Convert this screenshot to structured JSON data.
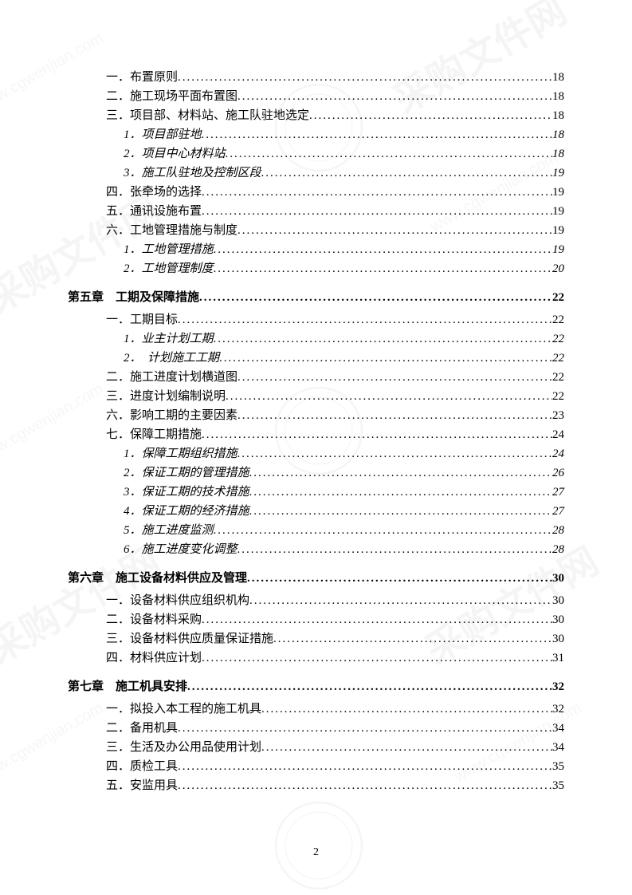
{
  "watermark_text": "采购文件网",
  "watermark_url": "www.cgwenjian.com",
  "page_number": "2",
  "toc": [
    {
      "level": "level1",
      "label": "一．布置原则",
      "page": "18"
    },
    {
      "level": "level1",
      "label": "二．施工现场平面布置图",
      "page": "18"
    },
    {
      "level": "level1",
      "label": "三．项目部、材料站、施工队驻地选定",
      "page": "18"
    },
    {
      "level": "level2",
      "label": "1．项目部驻地",
      "page": "18"
    },
    {
      "level": "level2",
      "label": "2．项目中心材料站",
      "page": "18"
    },
    {
      "level": "level2",
      "label": "3．施工队驻地及控制区段",
      "page": "19"
    },
    {
      "level": "level1",
      "label": "四．张牵场的选择",
      "page": "19"
    },
    {
      "level": "level1",
      "label": "五．通讯设施布置",
      "page": "19"
    },
    {
      "level": "level1",
      "label": "六．工地管理措施与制度",
      "page": "19"
    },
    {
      "level": "level2",
      "label": "1．工地管理措施",
      "page": "19"
    },
    {
      "level": "level2",
      "label": "2．工地管理制度",
      "page": "20"
    },
    {
      "level": "chapter",
      "label": "第五章　工期及保障措施",
      "page": "22",
      "bold": true
    },
    {
      "level": "level1",
      "label": "一．工期目标",
      "page": "22"
    },
    {
      "level": "level2",
      "label": "1．业主计划工期",
      "page": "22"
    },
    {
      "level": "level2",
      "label": "2．　计划施工工期",
      "page": "22"
    },
    {
      "level": "level1",
      "label": "二．施工进度计划横道图",
      "page": "22"
    },
    {
      "level": "level1",
      "label": "三．进度计划编制说明",
      "page": "22"
    },
    {
      "level": "level1",
      "label": "六．影响工期的主要因素",
      "page": "23"
    },
    {
      "level": "level1",
      "label": "七．保障工期措施",
      "page": "24"
    },
    {
      "level": "level2",
      "label": "1．保障工期组织措施",
      "page": "24"
    },
    {
      "level": "level2",
      "label": "2．保证工期的管理措施",
      "page": "26"
    },
    {
      "level": "level2",
      "label": "3．保证工期的技术措施",
      "page": "27"
    },
    {
      "level": "level2",
      "label": "4．保证工期的经济措施",
      "page": "27"
    },
    {
      "level": "level2",
      "label": "5．施工进度监测",
      "page": "28"
    },
    {
      "level": "level2",
      "label": "6．施工进度变化调整",
      "page": "28"
    },
    {
      "level": "chapter",
      "label": "第六章　施工设备材料供应及管理",
      "page": "30",
      "bold": true
    },
    {
      "level": "level1",
      "label": "一．设备材料供应组织机构",
      "page": "30"
    },
    {
      "level": "level1",
      "label": "二．设备材料采购",
      "page": "30"
    },
    {
      "level": "level1",
      "label": "三．设备材料供应质量保证措施",
      "page": "30"
    },
    {
      "level": "level1",
      "label": "四．材料供应计划",
      "page": "31"
    },
    {
      "level": "chapter",
      "label": "第七章　施工机具安排",
      "page": "32",
      "bold": true
    },
    {
      "level": "level1",
      "label": "一．拟投入本工程的施工机具",
      "page": "32"
    },
    {
      "level": "level1",
      "label": "二．备用机具",
      "page": "34"
    },
    {
      "level": "level1",
      "label": "三．生活及办公用品使用计划",
      "page": "34"
    },
    {
      "level": "level1",
      "label": "四．质检工具",
      "page": "35"
    },
    {
      "level": "level1",
      "label": "五．安监用具",
      "page": "35"
    }
  ]
}
